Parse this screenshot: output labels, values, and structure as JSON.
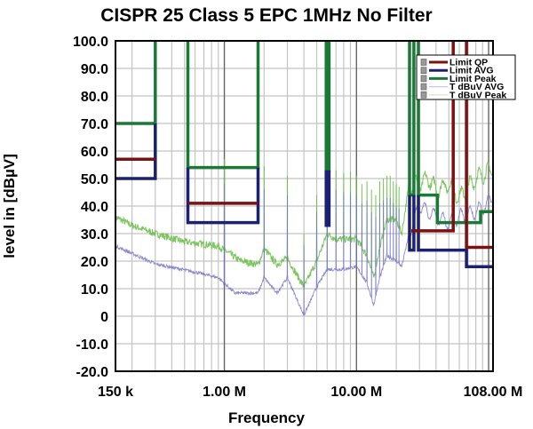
{
  "chart_data": {
    "type": "line",
    "title": "CISPR 25 Class 5 EPC 1MHz No Filter",
    "xlabel": "Frequency",
    "ylabel": "level in [dBµV]",
    "xscale": "log",
    "xunit": "MHz",
    "xlim": [
      0.15,
      108
    ],
    "ylim": [
      -20,
      100
    ],
    "grid": true,
    "legend_position": "top-right",
    "y_ticks": [
      100,
      90,
      80,
      70,
      60,
      50,
      40,
      30,
      20,
      10,
      0,
      -10,
      -20
    ],
    "y_tick_labels": [
      "100.0",
      "90.0",
      "80.0",
      "70.0",
      "60.0",
      "50.0",
      "40.0",
      "30.0",
      "20.0",
      "10.0",
      "0",
      "-10.0",
      "-20.0"
    ],
    "x_ticks": [
      0.15,
      1,
      10,
      108
    ],
    "x_tick_labels": [
      "150 k",
      "1.00 M",
      "10.00 M",
      "108.00 M"
    ],
    "legend": [
      {
        "label": "Limit QP",
        "color": "#7a1212"
      },
      {
        "label": "Limit AVG",
        "color": "#1c2070"
      },
      {
        "label": "Limit Peak",
        "color": "#1a7a35"
      },
      {
        "label": "T dBuV AVG",
        "color": "#c8c8f0"
      },
      {
        "label": "T dBuV Peak",
        "color": "#c8ecc0"
      }
    ],
    "limits": [
      {
        "name": "Limit QP",
        "color": "#7a1212",
        "polylines": [
          [
            [
              0.15,
              57
            ],
            [
              0.3,
              57
            ]
          ],
          [
            [
              0.53,
              41
            ],
            [
              1.8,
              41
            ]
          ],
          [
            [
              26,
              31
            ],
            [
              54,
              31
            ],
            [
              54,
              100
            ]
          ],
          [
            [
              68,
              100
            ],
            [
              68,
              25
            ],
            [
              108,
              25
            ]
          ]
        ]
      },
      {
        "name": "Limit AVG",
        "color": "#1c2070",
        "polylines": [
          [
            [
              0.15,
              50
            ],
            [
              0.3,
              50
            ],
            [
              0.3,
              70
            ]
          ],
          [
            [
              0.53,
              54
            ],
            [
              0.53,
              34
            ],
            [
              1.8,
              34
            ],
            [
              1.8,
              54
            ]
          ],
          [
            [
              5.9,
              53
            ],
            [
              5.9,
              33
            ],
            [
              6.2,
              33
            ],
            [
              6.2,
              53
            ]
          ],
          [
            [
              25.2,
              44
            ],
            [
              25.2,
              24
            ],
            [
              27.2,
              24
            ],
            [
              27.2,
              44
            ]
          ],
          [
            [
              29.4,
              44
            ],
            [
              29.4,
              24
            ],
            [
              68,
              24
            ],
            [
              68,
              18
            ],
            [
              108,
              18
            ]
          ]
        ]
      },
      {
        "name": "Limit Peak",
        "color": "#1a7a35",
        "polylines": [
          [
            [
              0.15,
              70
            ],
            [
              0.3,
              70
            ],
            [
              0.3,
              100
            ]
          ],
          [
            [
              0.53,
              100
            ],
            [
              0.53,
              54
            ],
            [
              1.8,
              54
            ],
            [
              1.8,
              100
            ]
          ],
          [
            [
              5.9,
              100
            ],
            [
              5.9,
              53
            ],
            [
              6.2,
              53
            ],
            [
              6.2,
              100
            ]
          ],
          [
            [
              25.2,
              100
            ],
            [
              25.2,
              44
            ],
            [
              27.2,
              44
            ],
            [
              27.2,
              100
            ]
          ],
          [
            [
              29.4,
              100
            ],
            [
              29.4,
              44
            ],
            [
              41,
              44
            ],
            [
              41,
              34
            ],
            [
              87,
              34
            ],
            [
              87,
              38
            ],
            [
              108,
              38
            ]
          ]
        ]
      }
    ],
    "traces": [
      {
        "name": "T dBuV Peak",
        "color": "#6cc04a",
        "baseline": [
          [
            0.15,
            36
          ],
          [
            0.2,
            33
          ],
          [
            0.3,
            30
          ],
          [
            0.5,
            27
          ],
          [
            0.9,
            25.5
          ],
          [
            1.3,
            20.3
          ],
          [
            1.8,
            18.7
          ],
          [
            2,
            24.5
          ],
          [
            2.5,
            18.8
          ],
          [
            3,
            21
          ],
          [
            4,
            10.6
          ],
          [
            5,
            20
          ],
          [
            6,
            30
          ],
          [
            7,
            28
          ],
          [
            8,
            28
          ],
          [
            10,
            28
          ],
          [
            12,
            22
          ],
          [
            13.5,
            14
          ],
          [
            15,
            25
          ],
          [
            17,
            35
          ],
          [
            20,
            35
          ],
          [
            22,
            30
          ],
          [
            25,
            48
          ],
          [
            30,
            48
          ],
          [
            35,
            50
          ],
          [
            40,
            46
          ],
          [
            50,
            48
          ],
          [
            60,
            43
          ],
          [
            70,
            47
          ],
          [
            80,
            50
          ],
          [
            95,
            52
          ],
          [
            108,
            53.5
          ]
        ],
        "spikes": [
          [
            1,
            57
          ],
          [
            2,
            54.5
          ],
          [
            3,
            51
          ],
          [
            4,
            30
          ],
          [
            5,
            44
          ],
          [
            6,
            50
          ],
          [
            7,
            53
          ],
          [
            8,
            52
          ],
          [
            9,
            52.6
          ],
          [
            10,
            51
          ],
          [
            11,
            48
          ],
          [
            12,
            49
          ],
          [
            13,
            46
          ],
          [
            14,
            44
          ],
          [
            15,
            49
          ],
          [
            16,
            50
          ],
          [
            17,
            51
          ],
          [
            18,
            51
          ],
          [
            19,
            49
          ],
          [
            20,
            48
          ],
          [
            21,
            47
          ]
        ]
      },
      {
        "name": "T dBuV AVG",
        "color": "#7474c8",
        "baseline": [
          [
            0.15,
            25.5
          ],
          [
            0.3,
            19
          ],
          [
            0.6,
            16
          ],
          [
            0.9,
            14
          ],
          [
            1.2,
            8.4
          ],
          [
            1.8,
            8.4
          ],
          [
            2,
            14
          ],
          [
            2.5,
            8.4
          ],
          [
            3,
            14
          ],
          [
            4,
            0.3
          ],
          [
            5,
            10.6
          ],
          [
            6,
            17
          ],
          [
            8,
            17
          ],
          [
            10,
            18
          ],
          [
            12,
            12
          ],
          [
            13.5,
            4
          ],
          [
            15,
            14
          ],
          [
            17,
            22
          ],
          [
            20,
            20
          ],
          [
            22,
            18
          ],
          [
            25,
            30
          ],
          [
            30,
            40
          ],
          [
            40,
            36
          ],
          [
            50,
            34
          ],
          [
            60,
            36
          ],
          [
            80,
            38
          ],
          [
            95,
            40
          ],
          [
            108,
            44
          ]
        ],
        "spikes": [
          [
            1,
            48
          ],
          [
            2,
            46
          ],
          [
            3,
            44
          ],
          [
            4,
            26
          ],
          [
            5,
            38
          ],
          [
            6,
            44
          ],
          [
            7,
            46
          ],
          [
            8,
            45
          ],
          [
            9,
            45
          ],
          [
            10,
            44
          ],
          [
            11,
            41
          ],
          [
            12,
            42
          ],
          [
            13,
            38
          ],
          [
            14,
            36
          ],
          [
            15,
            41
          ],
          [
            16,
            42
          ],
          [
            17,
            43
          ],
          [
            18,
            43
          ],
          [
            19,
            41
          ],
          [
            20,
            40
          ],
          [
            21,
            39
          ]
        ]
      }
    ]
  }
}
